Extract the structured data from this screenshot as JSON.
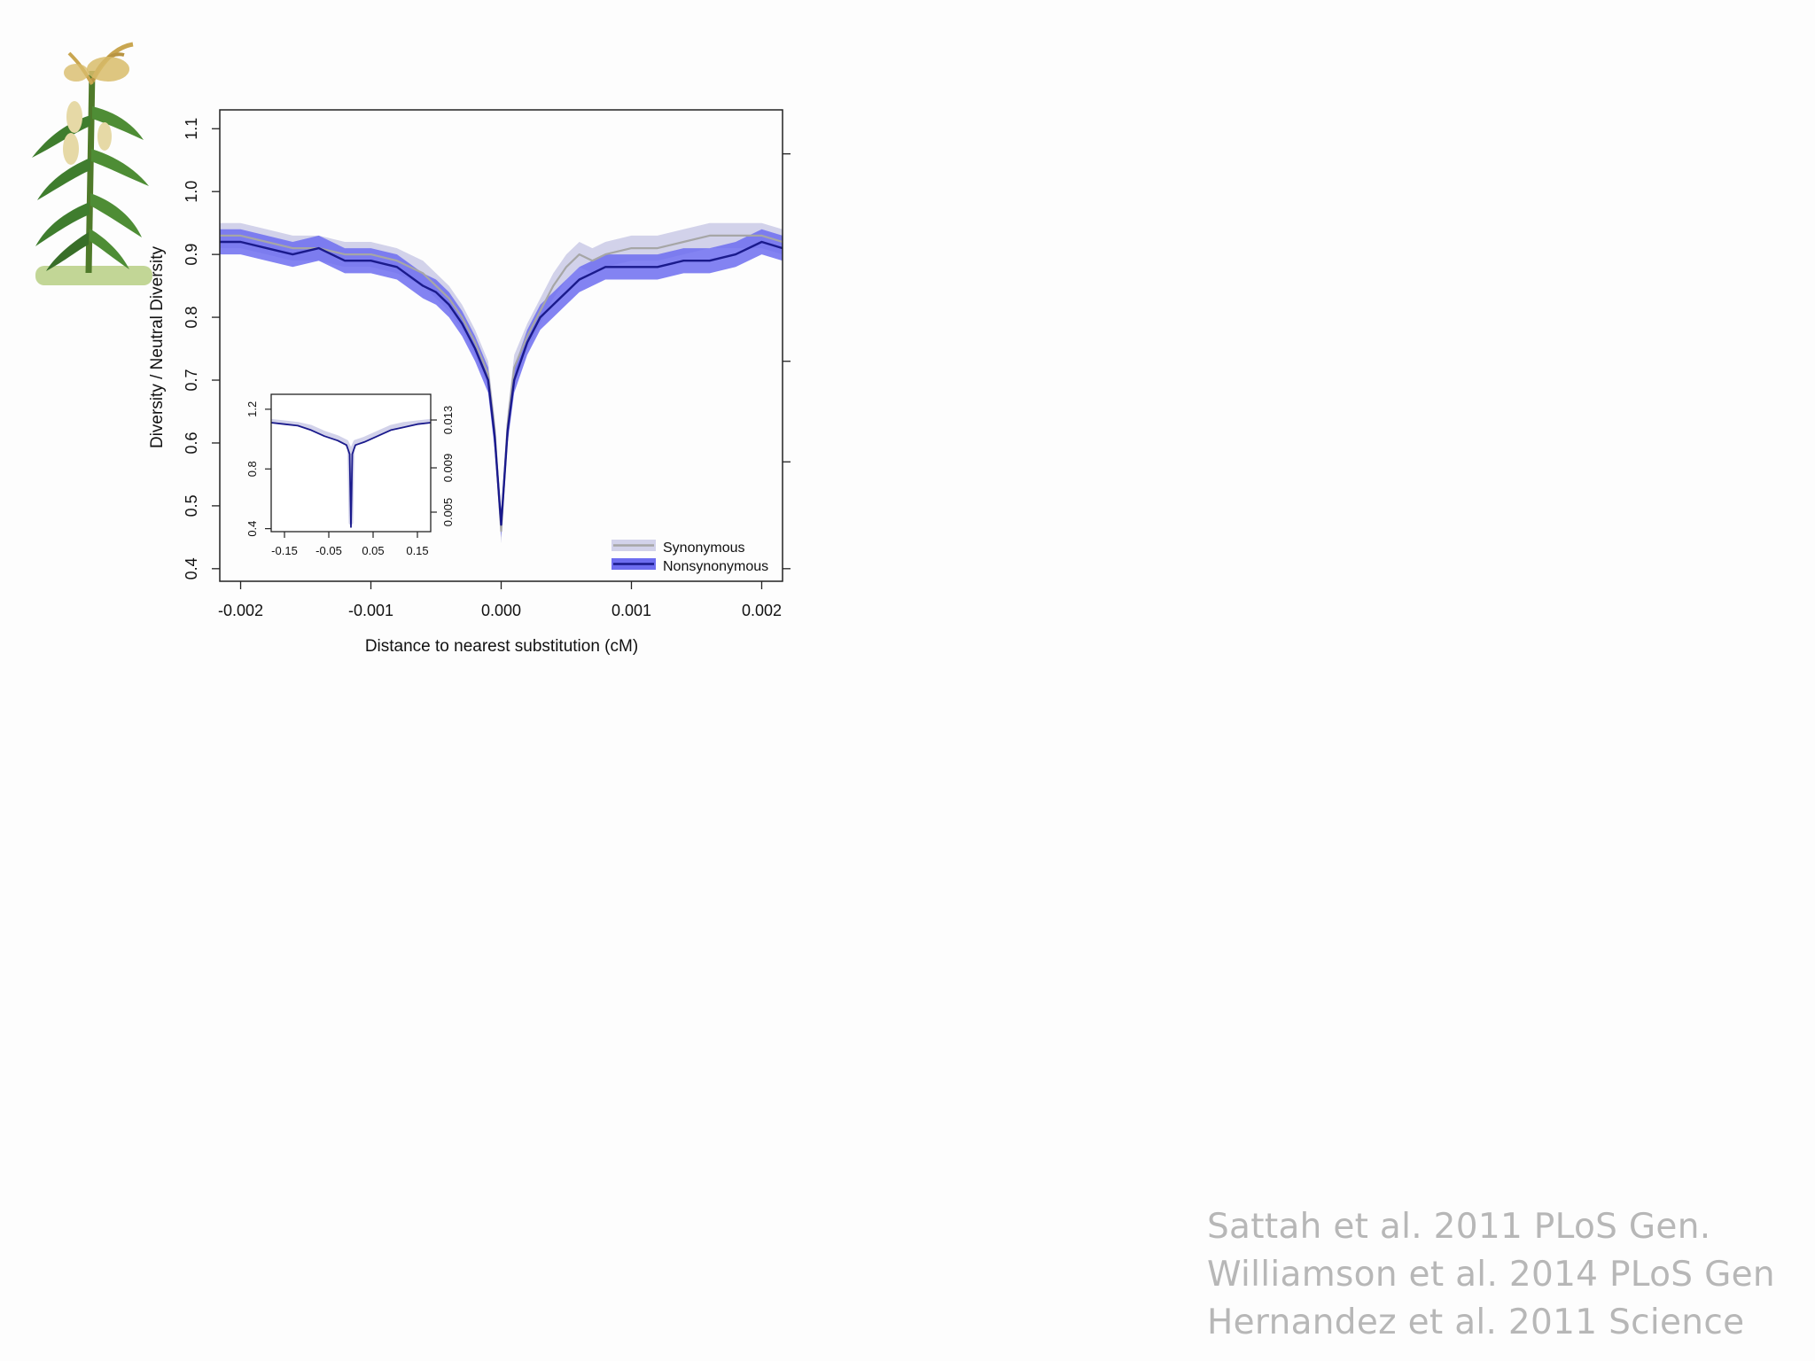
{
  "colors": {
    "nonsyn_line": "#1a1a8c",
    "nonsyn_band": "#6d6df0",
    "syn_line": "#a6a6a6",
    "syn_band": "#d2d2ea",
    "axis": "#222222",
    "refs_text": "#b7b7b7"
  },
  "illustration": {
    "icon": "maize-plant-icon"
  },
  "chart_data": [
    {
      "type": "line",
      "title": "",
      "xlabel": "Distance to nearest substitution (cM)",
      "ylabel": "Diversity / Neutral Diversity",
      "xlim": [
        -0.00216,
        0.00216
      ],
      "ylim": [
        0.38,
        1.13
      ],
      "xticks": [
        -0.002,
        -0.001,
        0.0,
        0.001,
        0.002
      ],
      "xtick_labels": [
        "-0.002",
        "-0.001",
        "0.000",
        "0.001",
        "0.002"
      ],
      "yticks": [
        0.4,
        0.5,
        0.6,
        0.7,
        0.8,
        0.9,
        1.0,
        1.1
      ],
      "ytick_labels": [
        "0.4",
        "0.5",
        "0.6",
        "0.7",
        "0.8",
        "0.9",
        "1.0",
        "1.1"
      ],
      "grid": false,
      "legend": "bottom-right",
      "series": [
        {
          "name": "Synonymous",
          "x": [
            -0.00216,
            -0.002,
            -0.0018,
            -0.0016,
            -0.0014,
            -0.0012,
            -0.001,
            -0.0008,
            -0.0006,
            -0.0005,
            -0.0004,
            -0.0003,
            -0.0002,
            -0.0001,
            -5e-05,
            0.0,
            5e-05,
            0.0001,
            0.0002,
            0.0003,
            0.0004,
            0.0005,
            0.0006,
            0.0007,
            0.0008,
            0.001,
            0.0012,
            0.0014,
            0.0016,
            0.0018,
            0.002,
            0.00216
          ],
          "y": [
            0.93,
            0.93,
            0.92,
            0.91,
            0.91,
            0.9,
            0.9,
            0.89,
            0.87,
            0.85,
            0.83,
            0.8,
            0.76,
            0.71,
            0.62,
            0.46,
            0.63,
            0.72,
            0.77,
            0.81,
            0.85,
            0.88,
            0.9,
            0.89,
            0.9,
            0.91,
            0.91,
            0.92,
            0.93,
            0.93,
            0.93,
            0.92
          ],
          "lower": [
            0.91,
            0.91,
            0.9,
            0.89,
            0.89,
            0.88,
            0.88,
            0.87,
            0.85,
            0.83,
            0.81,
            0.78,
            0.74,
            0.69,
            0.6,
            0.44,
            0.61,
            0.7,
            0.75,
            0.79,
            0.83,
            0.86,
            0.88,
            0.87,
            0.88,
            0.89,
            0.89,
            0.9,
            0.91,
            0.91,
            0.91,
            0.9
          ],
          "upper": [
            0.95,
            0.95,
            0.94,
            0.93,
            0.93,
            0.92,
            0.92,
            0.91,
            0.89,
            0.87,
            0.85,
            0.82,
            0.78,
            0.73,
            0.64,
            0.48,
            0.65,
            0.74,
            0.79,
            0.83,
            0.87,
            0.9,
            0.92,
            0.91,
            0.92,
            0.93,
            0.93,
            0.94,
            0.95,
            0.95,
            0.95,
            0.94
          ]
        },
        {
          "name": "Nonsynonymous",
          "x": [
            -0.00216,
            -0.002,
            -0.0018,
            -0.0016,
            -0.0014,
            -0.0012,
            -0.001,
            -0.0008,
            -0.0006,
            -0.0005,
            -0.0004,
            -0.0003,
            -0.0002,
            -0.0001,
            -5e-05,
            0.0,
            5e-05,
            0.0001,
            0.0002,
            0.0003,
            0.0004,
            0.0005,
            0.0006,
            0.0007,
            0.0008,
            0.001,
            0.0012,
            0.0014,
            0.0016,
            0.0018,
            0.002,
            0.00216
          ],
          "y": [
            0.92,
            0.92,
            0.91,
            0.9,
            0.91,
            0.89,
            0.89,
            0.88,
            0.85,
            0.84,
            0.82,
            0.79,
            0.75,
            0.7,
            0.61,
            0.47,
            0.62,
            0.7,
            0.76,
            0.8,
            0.82,
            0.84,
            0.86,
            0.87,
            0.88,
            0.88,
            0.88,
            0.89,
            0.89,
            0.9,
            0.92,
            0.91
          ],
          "lower": [
            0.9,
            0.9,
            0.89,
            0.88,
            0.89,
            0.87,
            0.87,
            0.86,
            0.83,
            0.82,
            0.8,
            0.77,
            0.73,
            0.68,
            0.59,
            0.45,
            0.6,
            0.68,
            0.74,
            0.78,
            0.8,
            0.82,
            0.84,
            0.85,
            0.86,
            0.86,
            0.86,
            0.87,
            0.87,
            0.88,
            0.9,
            0.89
          ],
          "upper": [
            0.94,
            0.94,
            0.93,
            0.92,
            0.93,
            0.91,
            0.91,
            0.9,
            0.87,
            0.86,
            0.84,
            0.81,
            0.77,
            0.72,
            0.63,
            0.49,
            0.64,
            0.72,
            0.78,
            0.82,
            0.84,
            0.86,
            0.88,
            0.89,
            0.9,
            0.9,
            0.9,
            0.91,
            0.91,
            0.92,
            0.94,
            0.93
          ]
        }
      ]
    },
    {
      "type": "line",
      "title": "",
      "xlabel": "",
      "ylabel": "",
      "xlim": [
        -0.18,
        0.18
      ],
      "ylim": [
        0.38,
        1.3
      ],
      "xticks": [
        -0.15,
        -0.05,
        0.05,
        0.15
      ],
      "xtick_labels": [
        "-0.15",
        "-0.05",
        "0.05",
        "0.15"
      ],
      "yticks": [
        0.4,
        0.8,
        1.2
      ],
      "ytick_labels": [
        "0.4",
        "0.8",
        "1.2"
      ],
      "y2ticks_labels": [
        "0.005",
        "0.009",
        "0.013"
      ],
      "grid": false,
      "series": [
        {
          "name": "Synonymous",
          "x": [
            -0.18,
            -0.15,
            -0.12,
            -0.09,
            -0.06,
            -0.03,
            -0.01,
            -0.003,
            0.0,
            0.003,
            0.01,
            0.03,
            0.06,
            0.09,
            0.12,
            0.15,
            0.18
          ],
          "y": [
            1.12,
            1.11,
            1.1,
            1.08,
            1.04,
            1.01,
            0.98,
            0.93,
            0.44,
            0.93,
            0.98,
            1.0,
            1.04,
            1.08,
            1.1,
            1.11,
            1.12
          ]
        },
        {
          "name": "Nonsynonymous",
          "x": [
            -0.18,
            -0.15,
            -0.12,
            -0.09,
            -0.06,
            -0.03,
            -0.01,
            -0.003,
            0.0,
            0.003,
            0.01,
            0.03,
            0.06,
            0.09,
            0.12,
            0.15,
            0.18
          ],
          "y": [
            1.11,
            1.1,
            1.09,
            1.06,
            1.02,
            0.99,
            0.96,
            0.9,
            0.41,
            0.9,
            0.96,
            0.98,
            1.02,
            1.06,
            1.08,
            1.1,
            1.11
          ]
        }
      ]
    }
  ],
  "references": [
    "Sattah et al. 2011 PLoS Gen.",
    "Williamson et al. 2014 PLoS Gen",
    "Hernandez et al. 2011 Science"
  ]
}
